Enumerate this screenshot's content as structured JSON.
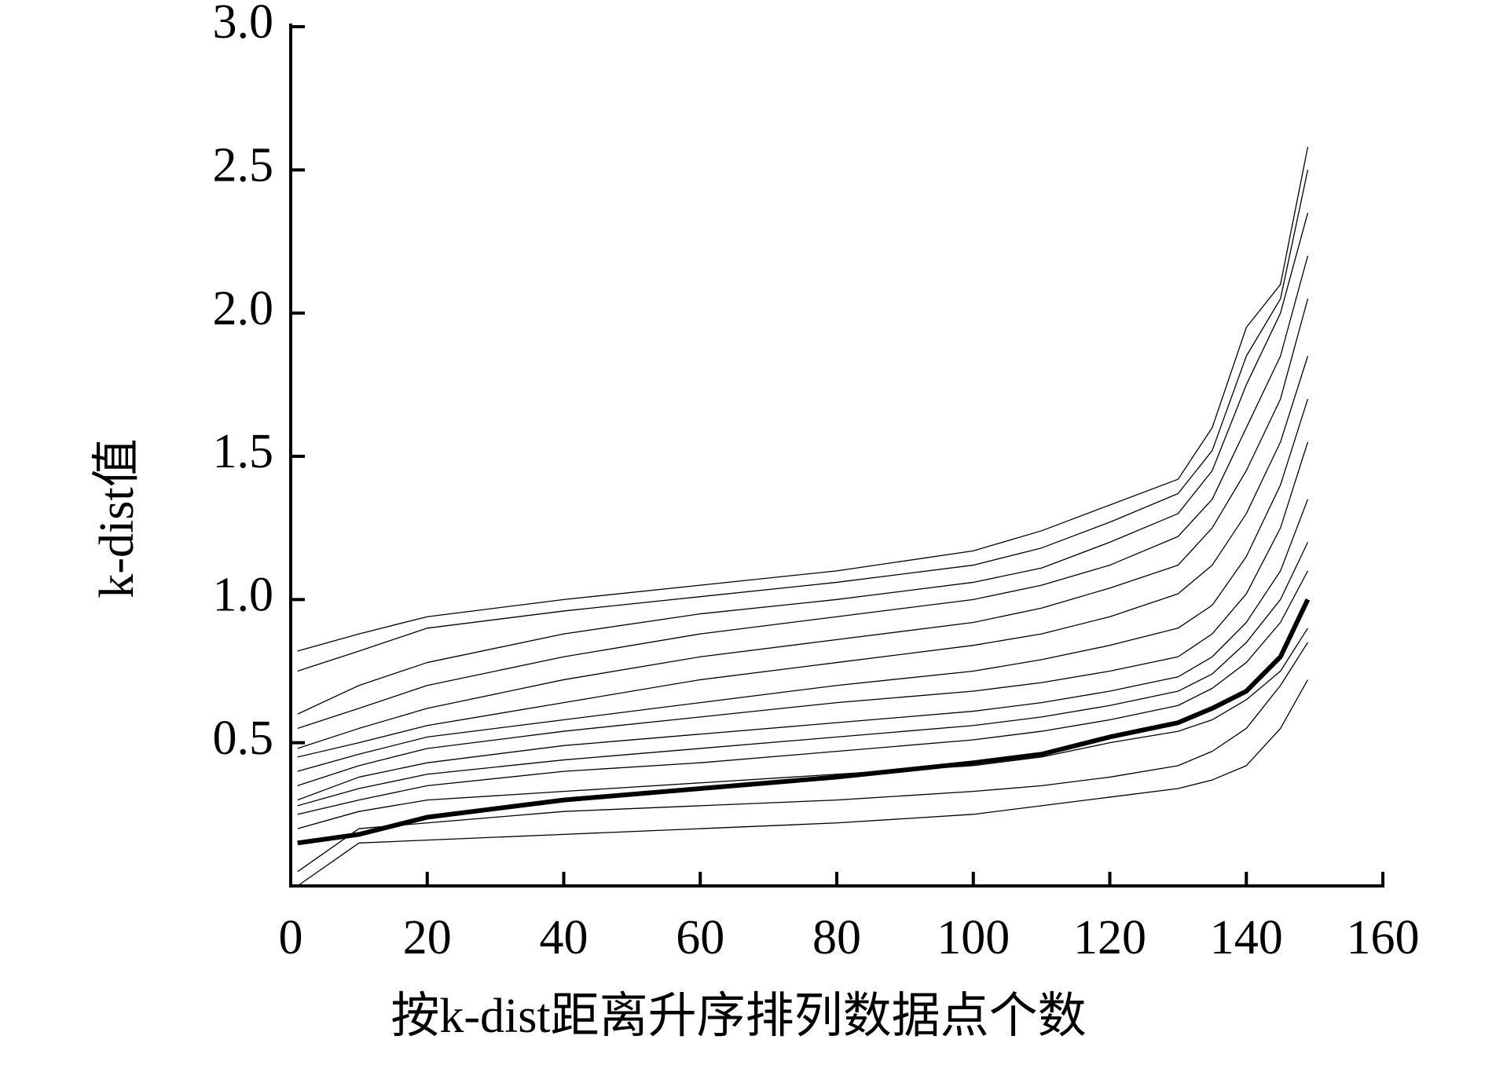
{
  "chart_data": {
    "type": "line",
    "ylabel": "k-dist值",
    "xlabel": "按k-dist距离升序排列数据点个数",
    "x": [
      1,
      10,
      20,
      40,
      60,
      80,
      100,
      110,
      120,
      130,
      135,
      140,
      145,
      149
    ],
    "xlim": [
      0,
      160
    ],
    "xticks": [
      0,
      20,
      40,
      60,
      80,
      100,
      120,
      140,
      160
    ],
    "ylim": [
      0,
      3
    ],
    "yticks": [
      0.5,
      {
        "value": 1,
        "label": "1.0"
      },
      1.5,
      {
        "value": 2,
        "label": "2.0"
      },
      2.5,
      {
        "value": 3,
        "label": "3.0"
      }
    ],
    "series": [
      {
        "color": "#000000",
        "linewidth": 1.3,
        "values": [
          0.82,
          0.88,
          0.94,
          1.0,
          1.05,
          1.1,
          1.17,
          1.24,
          1.33,
          1.42,
          1.6,
          1.95,
          2.1,
          2.58
        ]
      },
      {
        "color": "#000000",
        "linewidth": 1.3,
        "values": [
          0.75,
          0.82,
          0.9,
          0.96,
          1.01,
          1.06,
          1.12,
          1.18,
          1.27,
          1.37,
          1.52,
          1.85,
          2.05,
          2.5
        ]
      },
      {
        "color": "#000000",
        "linewidth": 1.3,
        "values": [
          0.6,
          0.7,
          0.78,
          0.88,
          0.95,
          1.0,
          1.06,
          1.11,
          1.2,
          1.3,
          1.45,
          1.75,
          2.0,
          2.35
        ]
      },
      {
        "color": "#000000",
        "linewidth": 1.3,
        "values": [
          0.55,
          0.62,
          0.7,
          0.8,
          0.88,
          0.94,
          1.0,
          1.05,
          1.12,
          1.22,
          1.35,
          1.6,
          1.85,
          2.2
        ]
      },
      {
        "color": "#000000",
        "linewidth": 1.3,
        "values": [
          0.48,
          0.55,
          0.62,
          0.72,
          0.8,
          0.86,
          0.92,
          0.97,
          1.04,
          1.12,
          1.25,
          1.45,
          1.7,
          2.05
        ]
      },
      {
        "color": "#000000",
        "linewidth": 1.3,
        "values": [
          0.45,
          0.5,
          0.56,
          0.64,
          0.72,
          0.78,
          0.84,
          0.88,
          0.94,
          1.02,
          1.12,
          1.3,
          1.55,
          1.85
        ]
      },
      {
        "color": "#000000",
        "linewidth": 1.3,
        "values": [
          0.4,
          0.46,
          0.52,
          0.58,
          0.64,
          0.7,
          0.75,
          0.79,
          0.84,
          0.9,
          0.98,
          1.15,
          1.4,
          1.7
        ]
      },
      {
        "color": "#000000",
        "linewidth": 1.3,
        "values": [
          0.35,
          0.42,
          0.48,
          0.54,
          0.59,
          0.64,
          0.68,
          0.71,
          0.75,
          0.8,
          0.88,
          1.02,
          1.25,
          1.55
        ]
      },
      {
        "color": "#000000",
        "linewidth": 1.3,
        "values": [
          0.3,
          0.38,
          0.43,
          0.49,
          0.53,
          0.57,
          0.61,
          0.64,
          0.68,
          0.73,
          0.8,
          0.92,
          1.1,
          1.35
        ]
      },
      {
        "color": "#000000",
        "linewidth": 1.3,
        "values": [
          0.28,
          0.34,
          0.39,
          0.44,
          0.48,
          0.52,
          0.56,
          0.59,
          0.63,
          0.68,
          0.74,
          0.85,
          1.0,
          1.2
        ]
      },
      {
        "color": "#000000",
        "linewidth": 1.3,
        "values": [
          0.25,
          0.3,
          0.35,
          0.4,
          0.43,
          0.47,
          0.51,
          0.54,
          0.58,
          0.63,
          0.69,
          0.78,
          0.92,
          1.1
        ]
      },
      {
        "color": "#000000",
        "linewidth": 1.3,
        "values": [
          0.2,
          0.26,
          0.3,
          0.33,
          0.36,
          0.39,
          0.42,
          0.45,
          0.5,
          0.54,
          0.58,
          0.65,
          0.75,
          0.9
        ]
      },
      {
        "color": "#000000",
        "linewidth": 1.3,
        "values": [
          0.05,
          0.2,
          0.22,
          0.26,
          0.28,
          0.3,
          0.33,
          0.35,
          0.38,
          0.42,
          0.47,
          0.55,
          0.7,
          0.85
        ]
      },
      {
        "color": "#000000",
        "linewidth": 1.3,
        "values": [
          0.0,
          0.15,
          0.16,
          0.18,
          0.2,
          0.22,
          0.25,
          0.28,
          0.31,
          0.34,
          0.37,
          0.42,
          0.55,
          0.72
        ]
      },
      {
        "color": "#000000",
        "linewidth": 6,
        "values": [
          0.15,
          0.18,
          0.24,
          0.3,
          0.34,
          0.38,
          0.43,
          0.46,
          0.52,
          0.57,
          0.62,
          0.68,
          0.8,
          1.0
        ]
      }
    ]
  }
}
